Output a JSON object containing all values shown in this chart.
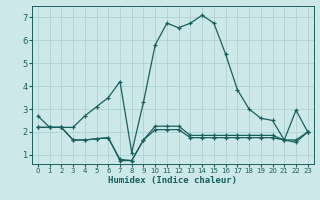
{
  "xlabel": "Humidex (Indice chaleur)",
  "bg_color": "#cce8e8",
  "grid_color": "#aacece",
  "line_color": "#1a5f5f",
  "xlim": [
    -0.5,
    23.5
  ],
  "ylim": [
    0.6,
    7.5
  ],
  "xticks": [
    0,
    1,
    2,
    3,
    4,
    5,
    6,
    7,
    8,
    9,
    10,
    11,
    12,
    13,
    14,
    15,
    16,
    17,
    18,
    19,
    20,
    21,
    22,
    23
  ],
  "yticks": [
    1,
    2,
    3,
    4,
    5,
    6,
    7
  ],
  "line1": {
    "x": [
      0,
      1,
      2,
      3,
      4,
      5,
      6,
      7,
      8,
      9,
      10,
      11,
      12,
      13,
      14,
      15,
      16,
      17,
      18,
      19,
      20,
      21,
      22,
      23
    ],
    "y": [
      2.7,
      2.2,
      2.2,
      2.2,
      2.7,
      3.1,
      3.5,
      4.2,
      1.1,
      3.3,
      5.8,
      6.75,
      6.55,
      6.75,
      7.1,
      6.75,
      5.4,
      3.85,
      3.0,
      2.6,
      2.5,
      1.65,
      2.95,
      2.0
    ]
  },
  "line2": {
    "x": [
      0,
      1,
      2,
      3,
      4,
      5,
      6,
      7,
      8,
      9,
      10,
      11,
      12,
      13,
      14,
      15,
      16,
      17,
      18,
      19,
      20,
      21,
      22,
      23
    ],
    "y": [
      2.2,
      2.2,
      2.2,
      1.65,
      1.65,
      1.7,
      1.75,
      0.8,
      0.75,
      1.65,
      2.25,
      2.25,
      2.25,
      1.85,
      1.85,
      1.85,
      1.85,
      1.85,
      1.85,
      1.85,
      1.85,
      1.65,
      1.65,
      2.0
    ]
  },
  "line3": {
    "x": [
      0,
      1,
      2,
      3,
      4,
      5,
      6,
      7,
      8,
      9,
      10,
      11,
      12,
      13,
      14,
      15,
      16,
      17,
      18,
      19,
      20,
      21,
      22,
      23
    ],
    "y": [
      2.2,
      2.2,
      2.2,
      1.65,
      1.65,
      1.7,
      1.75,
      0.75,
      0.75,
      1.65,
      2.1,
      2.1,
      2.1,
      1.75,
      1.75,
      1.75,
      1.75,
      1.75,
      1.75,
      1.75,
      1.75,
      1.65,
      1.55,
      2.0
    ]
  }
}
